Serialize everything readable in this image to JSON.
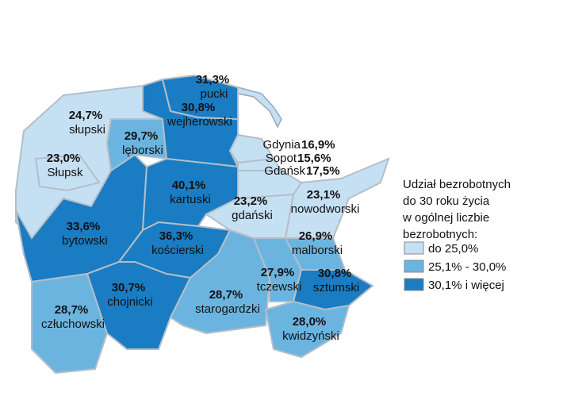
{
  "regions": [
    {
      "name": "słupski",
      "value": "24,7%",
      "color": "#c6e0f3"
    },
    {
      "name": "Słupsk",
      "value": "23,0%",
      "color": "#c6e0f3"
    },
    {
      "name": "lęborski",
      "value": "29,7%",
      "color": "#6cb4e0"
    },
    {
      "name": "bytowski",
      "value": "33,6%",
      "color": "#1a7cc2"
    },
    {
      "name": "wejherowski",
      "value": "30,8%",
      "color": "#1a7cc2"
    },
    {
      "name": "pucki",
      "value": "31,3%",
      "color": "#1a7cc2"
    },
    {
      "name": "kartuski",
      "value": "40,1%",
      "color": "#1a7cc2"
    },
    {
      "name": "kościerski",
      "value": "36,3%",
      "color": "#1a7cc2"
    },
    {
      "name": "człuchowski",
      "value": "28,7%",
      "color": "#6cb4e0"
    },
    {
      "name": "chojnicki",
      "value": "30,7%",
      "color": "#1a7cc2"
    },
    {
      "name": "starogardzki",
      "value": "28,7%",
      "color": "#6cb4e0"
    },
    {
      "name": "gdański",
      "value": "23,2%",
      "color": "#c6e0f3"
    },
    {
      "name": "nowodworski",
      "value": "23,1%",
      "color": "#c6e0f3"
    },
    {
      "name": "tczewski",
      "value": "27,9%",
      "color": "#6cb4e0"
    },
    {
      "name": "malborski",
      "value": "26,9%",
      "color": "#6cb4e0"
    },
    {
      "name": "sztumski",
      "value": "30,8%",
      "color": "#1a7cc2"
    },
    {
      "name": "kwidzyński",
      "value": "28,0%",
      "color": "#6cb4e0"
    },
    {
      "name": "Gdynia",
      "value": "16,9%",
      "color": "#c6e0f3"
    },
    {
      "name": "Sopot",
      "value": "15,6%",
      "color": "#c6e0f3"
    },
    {
      "name": "Gdańsk",
      "value": "17,5%",
      "color": "#c6e0f3"
    }
  ],
  "legend": {
    "title": [
      "Udział bezrobotnych",
      "do 30 roku życia",
      "w ogólnej liczbie",
      "bezrobotnych:"
    ],
    "items": [
      {
        "label": "do 25,0%",
        "color": "#c6e0f3"
      },
      {
        "label": "25,1% - 30,0%",
        "color": "#6cb4e0"
      },
      {
        "label": "30,1% i więcej",
        "color": "#1a7cc2"
      }
    ]
  }
}
